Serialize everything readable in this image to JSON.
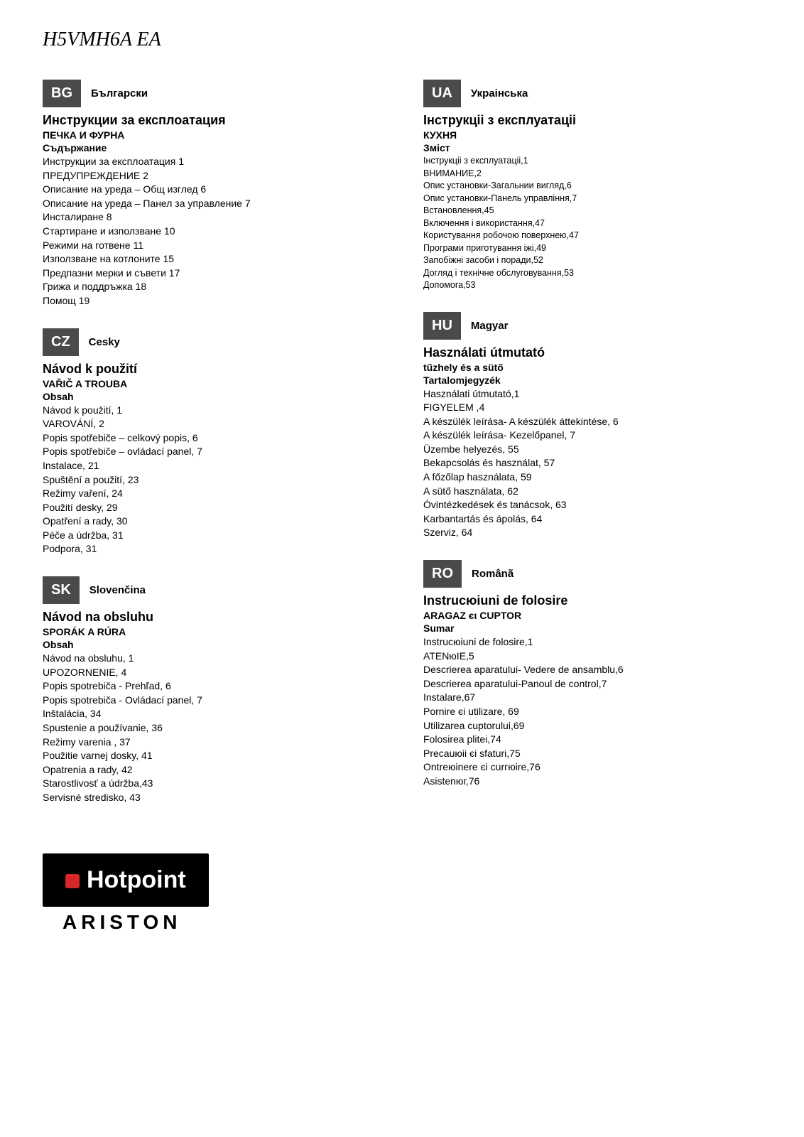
{
  "model": "H5VMH6A EA",
  "brand": {
    "name": "Hotpoint",
    "sub": "ARISTON"
  },
  "languages": [
    {
      "code": "BG",
      "name": "Български",
      "manual_title": "Инструкции за експлоатация",
      "product_type": "ПЕЧКА И ФУРНА",
      "contents_label": "Съдържание",
      "toc": [
        "Инструкции за експлоатация 1",
        "ПРЕДУПРЕЖДЕНИЕ 2",
        "Описание на уреда – Общ изглед 6",
        "Описание на уреда – Панел за управление 7",
        "Инсталиране 8",
        "Стартиране и използване 10",
        "Режими на готвене 11",
        "Използване на котлоните 15",
        "Предпазни мерки и съвети 17",
        "Грижа и поддръжка 18",
        "Помощ 19"
      ]
    },
    {
      "code": "CZ",
      "name": "Cesky",
      "manual_title": "Návod k použití",
      "product_type": "VAŘIČ A TROUBA",
      "contents_label": "Obsah",
      "toc": [
        "Návod k použití, 1",
        "VAROVÁNÍ, 2",
        "Popis spotřebiče – celkový popis, 6",
        "Popis spotřebiče – ovládací panel, 7",
        "Instalace, 21",
        "Spuštění a použití, 23",
        "Režimy vaření, 24",
        "Použití desky, 29",
        "Opatření a rady, 30",
        "Péče a údržba, 31",
        "Podpora, 31"
      ]
    },
    {
      "code": "SK",
      "name": "Slovenčina",
      "manual_title": "Návod na obsluhu",
      "product_type": "SPORÁK A RÚRA",
      "contents_label": "Obsah",
      "toc": [
        "Návod na obsluhu, 1",
        "UPOZORNENIE, 4",
        "Popis spotrebiča - Prehľad, 6",
        "Popis spotrebiča - Ovládací panel, 7",
        "Inštalácia, 34",
        "Spustenie a používanie, 36",
        "Režimy varenia , 37",
        "Použitie varnej dosky, 41",
        "Opatrenia a rady, 42",
        "Starostlivosť a údržba,43",
        "Servisné stredisko, 43"
      ]
    },
    {
      "code": "UA",
      "name": "Украінська",
      "manual_title": "Інструкціі з експлуатаціі",
      "product_type": "КУХНЯ",
      "contents_label": "Зміст",
      "toc": [
        "Інструкціі з експлуатаціі,1",
        "ВНИМАНИЕ,2",
        "Опис установки-Загальнии вигляд,6",
        "Опис установки-Панель управління,7",
        "Встановлення,45",
        "Включення і використання,47",
        "Користування робочою поверхнею,47",
        "Програми приготування іжі,49",
        "Запобіжні засоби і поради,52",
        "Догляд і технічне обслуговування,53",
        "Допомога,53"
      ]
    },
    {
      "code": "HU",
      "name": "Magyar",
      "manual_title": "Használati útmutató",
      "product_type": "tűzhely és a sütő",
      "contents_label": "Tartalomjegyzék",
      "toc": [
        "Használati útmutató,1",
        "FIGYELEM ,4",
        "A készülék leírása- A készülék áttekintése, 6",
        "A készülék leírása- Kezelőpanel, 7",
        "Üzembe helyezés, 55",
        "Bekapcsolás és használat, 57",
        "A főzőlap használata, 59",
        "A sütő használata, 62",
        "Óvintézkedések és tanácsok, 63",
        "Karbantartás és ápolás, 64",
        "Szerviz, 64"
      ]
    },
    {
      "code": "RO",
      "name": "Românã",
      "manual_title": "Instrucюiuni de folosire",
      "product_type": "ARAGAZ єι CUPTOR",
      "contents_label": "Sumar",
      "toc": [
        "Instrucюiuni de folosire,1",
        "ATENюIE,5",
        "Descrierea aparatului- Vedere de ansamblu,6",
        "Descrierea aparatului-Panoul de control,7",
        "Instalare,67",
        "Pornire єi utilizare, 69",
        "Utilizarea cuptorului,69",
        "Folosirea plitei,74",
        "Precauюii єi sfaturi,75",
        "Ontreюinere єi curгюire,76",
        "Asistenюг,76"
      ]
    }
  ]
}
